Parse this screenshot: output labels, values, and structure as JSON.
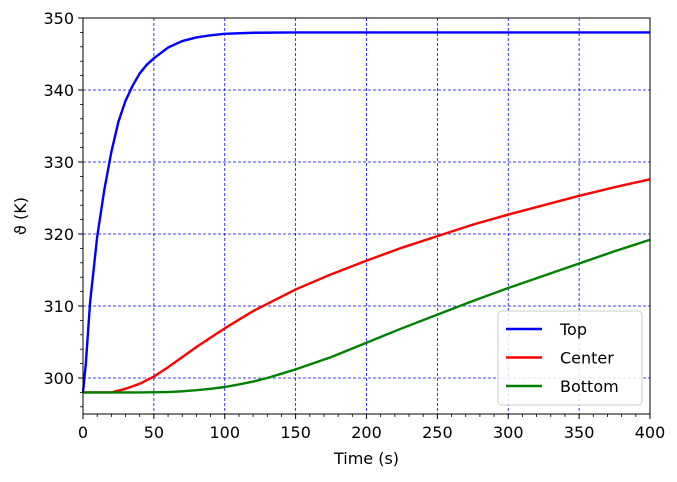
{
  "chart_data": {
    "type": "line",
    "title": "",
    "xlabel": "Time (s)",
    "ylabel": "ϑ (K)",
    "xlim": [
      0,
      400
    ],
    "ylim": [
      295,
      350
    ],
    "xticks": [
      0,
      50,
      100,
      150,
      200,
      250,
      300,
      350,
      400
    ],
    "yticks": [
      300,
      310,
      320,
      330,
      340,
      350
    ],
    "xtick_labels": [
      "0",
      "50",
      "100",
      "150",
      "200",
      "250",
      "300",
      "350",
      "400"
    ],
    "ytick_labels": [
      "300",
      "310",
      "320",
      "330",
      "340",
      "350"
    ],
    "grid": true,
    "grid_color": "#0000ff",
    "legend_placement": "lower-right",
    "series": [
      {
        "name": "Top",
        "color": "#0000ff",
        "x": [
          0,
          2,
          5,
          10,
          15,
          20,
          25,
          30,
          35,
          40,
          45,
          50,
          60,
          70,
          80,
          90,
          100,
          120,
          150,
          200,
          250,
          300,
          350,
          400
        ],
        "y": [
          298,
          302,
          310.5,
          319.6,
          326.1,
          331.4,
          335.6,
          338.5,
          340.6,
          342.3,
          343.5,
          344.4,
          345.9,
          346.8,
          347.3,
          347.6,
          347.8,
          347.95,
          348.0,
          348.0,
          348.0,
          348.0,
          348.0,
          348.0
        ]
      },
      {
        "name": "Center",
        "color": "#ff0000",
        "x": [
          0,
          10,
          20,
          30,
          40,
          50,
          60,
          70,
          80,
          90,
          100,
          120,
          140,
          150,
          175,
          200,
          225,
          250,
          275,
          300,
          325,
          350,
          375,
          400
        ],
        "y": [
          298,
          298,
          298,
          298.5,
          299.2,
          300.2,
          301.5,
          302.9,
          304.3,
          305.6,
          306.9,
          309.3,
          311.3,
          312.3,
          314.4,
          316.3,
          318.1,
          319.7,
          321.3,
          322.7,
          324.0,
          325.3,
          326.5,
          327.6
        ]
      },
      {
        "name": "Bottom",
        "color": "#008000",
        "x": [
          0,
          20,
          40,
          60,
          70,
          80,
          90,
          100,
          110,
          120,
          130,
          140,
          150,
          175,
          200,
          225,
          250,
          275,
          300,
          325,
          350,
          375,
          400
        ],
        "y": [
          298,
          298,
          298,
          298.05,
          298.15,
          298.3,
          298.5,
          298.75,
          299.1,
          299.5,
          300.0,
          300.6,
          301.2,
          302.9,
          304.9,
          306.9,
          308.8,
          310.7,
          312.5,
          314.2,
          315.9,
          317.6,
          319.2
        ]
      }
    ]
  }
}
